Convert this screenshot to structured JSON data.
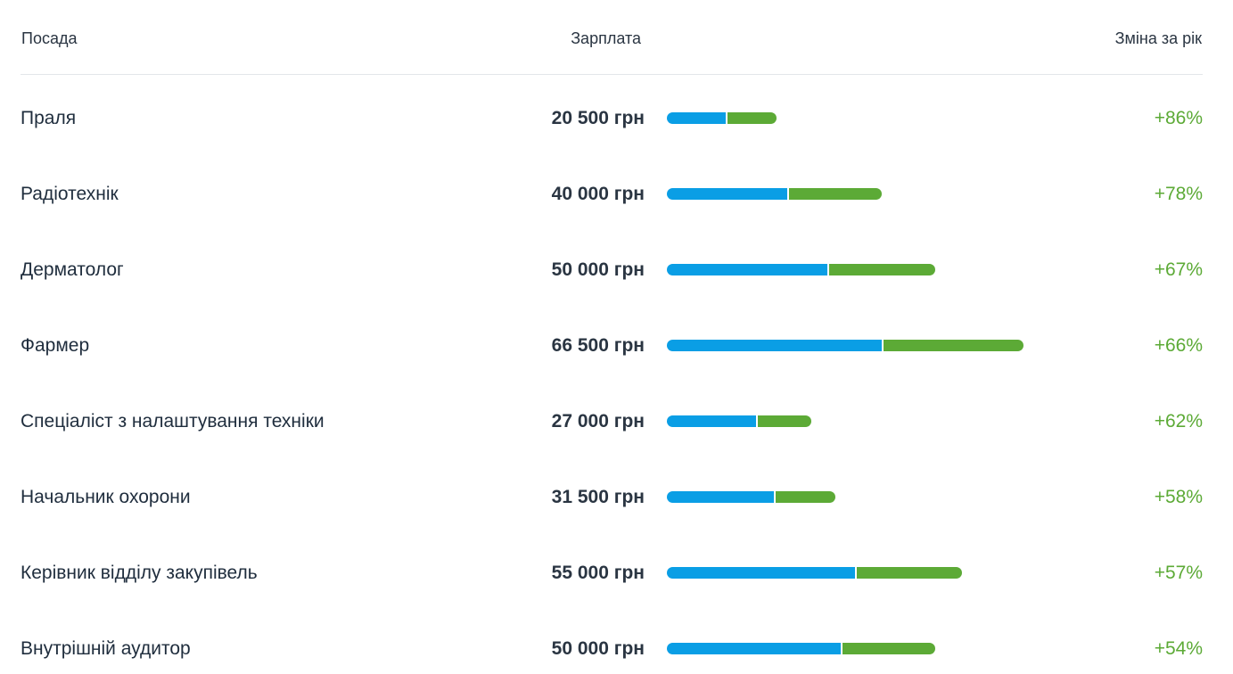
{
  "header": {
    "position": "Посада",
    "salary": "Зарплата",
    "change": "Зміна за рік"
  },
  "colors": {
    "previous_segment": "#0a9ee5",
    "growth_segment": "#5caa36",
    "change_text": "#5caa36"
  },
  "rows": [
    {
      "position": "Праля",
      "salary": "20 500 грн",
      "change": "+86%",
      "salary_value": 20500,
      "change_value": 86
    },
    {
      "position": "Радіотехнік",
      "salary": "40 000 грн",
      "change": "+78%",
      "salary_value": 40000,
      "change_value": 78
    },
    {
      "position": "Дерматолог",
      "salary": "50 000 грн",
      "change": "+67%",
      "salary_value": 50000,
      "change_value": 67
    },
    {
      "position": "Фармер",
      "salary": "66 500 грн",
      "change": "+66%",
      "salary_value": 66500,
      "change_value": 66
    },
    {
      "position": "Спеціаліст з налаштування техніки",
      "salary": "27 000 грн",
      "change": "+62%",
      "salary_value": 27000,
      "change_value": 62
    },
    {
      "position": "Начальник охорони",
      "salary": "31 500 грн",
      "change": "+58%",
      "salary_value": 31500,
      "change_value": 58
    },
    {
      "position": "Керівник відділу закупівель",
      "salary": "55 000 грн",
      "change": "+57%",
      "salary_value": 55000,
      "change_value": 57
    },
    {
      "position": "Внутрішній аудитор",
      "salary": "50 000 грн",
      "change": "+54%",
      "salary_value": 50000,
      "change_value": 54
    }
  ]
}
